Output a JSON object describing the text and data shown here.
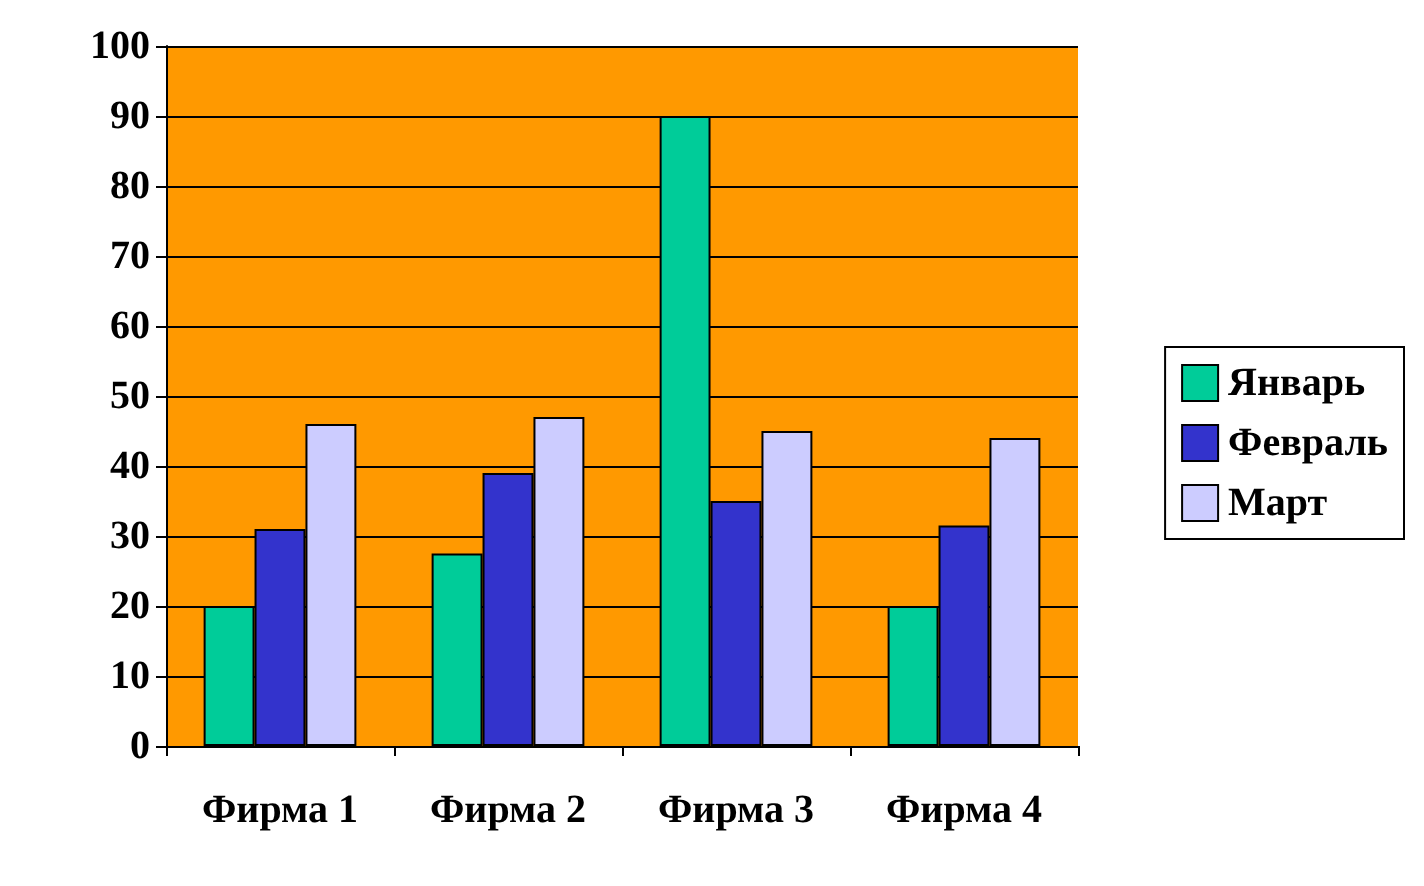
{
  "chart_data": {
    "type": "bar",
    "categories": [
      "Фирма 1",
      "Фирма 2",
      "Фирма 3",
      "Фирма 4"
    ],
    "series": [
      {
        "name": "Январь",
        "color": "#00cc99",
        "values": [
          20,
          27.5,
          90,
          20
        ]
      },
      {
        "name": "Февраль",
        "color": "#3333cc",
        "values": [
          31,
          39,
          35,
          31.5
        ]
      },
      {
        "name": "Март",
        "color": "#ccccff",
        "values": [
          46,
          47,
          45,
          44
        ]
      }
    ],
    "ylim": [
      0,
      100
    ],
    "yticks": [
      0,
      10,
      20,
      30,
      40,
      50,
      60,
      70,
      80,
      90,
      100
    ],
    "grid": "y",
    "legend": "right"
  }
}
